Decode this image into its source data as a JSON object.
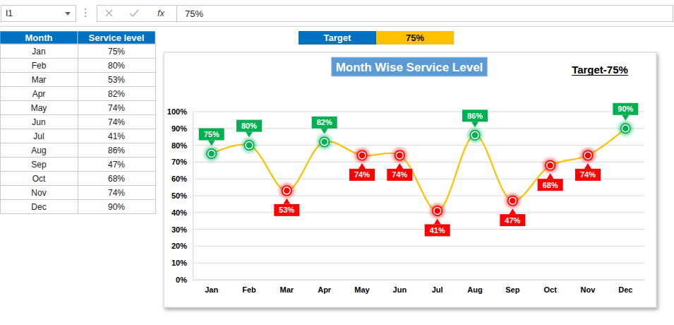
{
  "formula_bar": {
    "name_box": "I1",
    "function_icon": "fx",
    "formula": "75%"
  },
  "table": {
    "header": [
      "Month",
      "Service level"
    ],
    "rows": [
      [
        "Jan",
        "75%"
      ],
      [
        "Feb",
        "80%"
      ],
      [
        "Mar",
        "53%"
      ],
      [
        "Apr",
        "82%"
      ],
      [
        "May",
        "74%"
      ],
      [
        "Jun",
        "74%"
      ],
      [
        "Jul",
        "41%"
      ],
      [
        "Aug",
        "86%"
      ],
      [
        "Sep",
        "47%"
      ],
      [
        "Oct",
        "68%"
      ],
      [
        "Nov",
        "74%"
      ],
      [
        "Dec",
        "90%"
      ]
    ]
  },
  "target_cell": {
    "label": "Target",
    "value": "75%"
  },
  "chart_data": {
    "type": "line",
    "title": "Month Wise Service Level",
    "annotations": [
      "Target-75%"
    ],
    "categories": [
      "Jan",
      "Feb",
      "Mar",
      "Apr",
      "May",
      "Jun",
      "Jul",
      "Aug",
      "Sep",
      "Oct",
      "Nov",
      "Dec"
    ],
    "values": [
      75,
      80,
      53,
      82,
      74,
      74,
      41,
      86,
      47,
      68,
      74,
      90
    ],
    "value_labels": [
      "75%",
      "80%",
      "53%",
      "82%",
      "74%",
      "74%",
      "41%",
      "86%",
      "47%",
      "68%",
      "74%",
      "90%"
    ],
    "color": "#ffc000",
    "colors": [
      "#00b050",
      "#00b050",
      "#ff0000",
      "#00b050",
      "#ff0000",
      "#ff0000",
      "#ff0000",
      "#00b050",
      "#ff0000",
      "#ff0000",
      "#ff0000",
      "#00b050"
    ],
    "marker": "circle",
    "line_style": "solid",
    "data_labels": true,
    "grid": true,
    "ylim": [
      0,
      100
    ],
    "yticks": [
      {
        "value": 0,
        "label": "0%"
      },
      {
        "value": 10,
        "label": "10%"
      },
      {
        "value": 20,
        "label": "20%"
      },
      {
        "value": 30,
        "label": "30%"
      },
      {
        "value": 40,
        "label": "40%"
      },
      {
        "value": 50,
        "label": "50%"
      },
      {
        "value": 60,
        "label": "60%"
      },
      {
        "value": 70,
        "label": "70%"
      },
      {
        "value": 80,
        "label": "80%"
      },
      {
        "value": 90,
        "label": "90%"
      },
      {
        "value": 100,
        "label": "100%"
      }
    ]
  }
}
